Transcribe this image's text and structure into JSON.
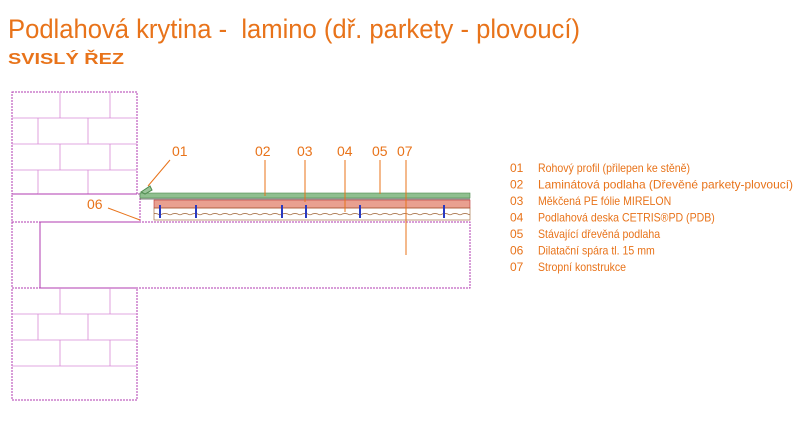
{
  "header": {
    "title": "Podlahová krytina -  lamino (dř. parkety - plovoucí)",
    "subtitle": "SVISLÝ ŘEZ"
  },
  "callouts": [
    "01",
    "02",
    "03",
    "04",
    "05",
    "07",
    "06"
  ],
  "legend": [
    {
      "number": "01",
      "text": "Rohový profil (přilepen ke stěně)"
    },
    {
      "number": "02",
      "text": "Laminátová podlaha (Dřevěné parkety-plovoucí)"
    },
    {
      "number": "03",
      "text": "Měkčená PE fólie MIRELON"
    },
    {
      "number": "04",
      "text": "Podlahová deska CETRIS®PD (PDB)"
    },
    {
      "number": "05",
      "text": "Stávající dřevěná podlaha"
    },
    {
      "number": "06",
      "text": "Dilatační spára tl. 15 mm"
    },
    {
      "number": "07",
      "text": "Stropní konstrukce"
    }
  ]
}
